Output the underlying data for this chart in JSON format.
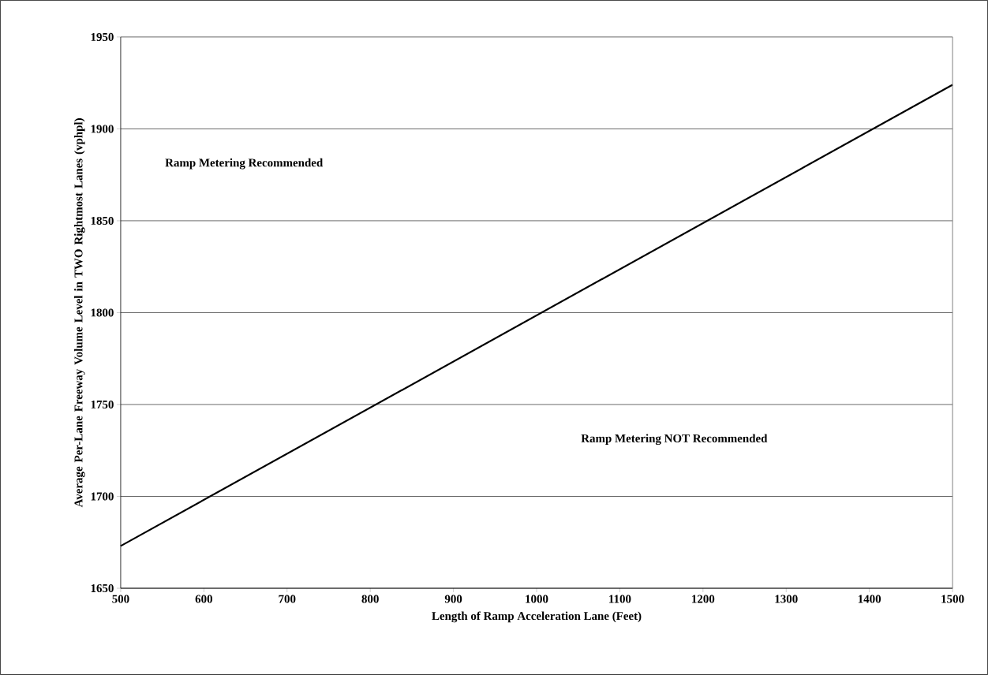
{
  "chart_data": {
    "type": "line",
    "xlabel": "Length of Ramp Acceleration Lane (Feet)",
    "ylabel": "Average Per-Lane Freeway Volume Level in TWO Rightmost Lanes (vphpl)",
    "x": [
      500,
      1500
    ],
    "series": [
      {
        "color": "#000000",
        "values": [
          1673,
          1924
        ]
      }
    ],
    "xlim": [
      500,
      1500
    ],
    "xticks": [
      500,
      600,
      700,
      800,
      900,
      1000,
      1100,
      1200,
      1300,
      1400,
      1500
    ],
    "ylim": [
      1650,
      1950
    ],
    "yticks": [
      1650,
      1700,
      1750,
      1800,
      1850,
      1900,
      1950
    ],
    "grid": "y",
    "marker": "none",
    "line_style": "solid",
    "annotations": [
      "Ramp Metering Recommended",
      "Ramp Metering NOT Recommended"
    ]
  }
}
